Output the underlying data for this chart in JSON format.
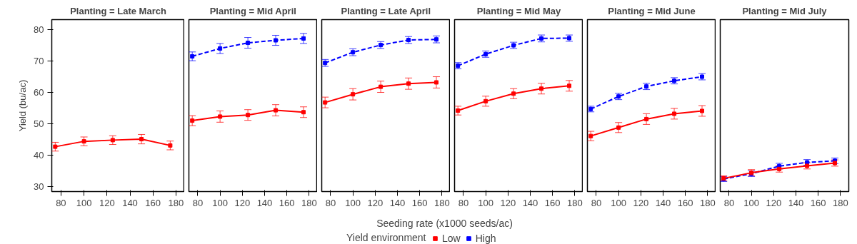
{
  "chart_data": [
    {
      "type": "line",
      "title": "Planting = Late March",
      "ylabel": "Yield (bu/ac)",
      "marker": "square",
      "x": [
        75,
        100,
        125,
        150,
        175
      ],
      "xlim": [
        72,
        187.5
      ],
      "xticks": [
        80,
        100,
        120,
        140,
        160,
        180
      ],
      "ylim": [
        28.4,
        83.2
      ],
      "yticks": [
        30,
        40,
        50,
        60,
        70,
        80
      ],
      "series": [
        {
          "name": "Low",
          "color": "#ff0000",
          "line_style": "solid",
          "values": [
            42.7,
            44.4,
            44.8,
            45.1,
            43.1
          ],
          "errors": [
            1.4,
            1.4,
            1.4,
            1.5,
            1.4
          ]
        }
      ]
    },
    {
      "type": "line",
      "title": "Planting = Mid April",
      "tick_labels": "x",
      "marker": "square",
      "x": [
        75,
        100,
        125,
        150,
        175
      ],
      "xlim": [
        72,
        187.5
      ],
      "xticks": [
        80,
        100,
        120,
        140,
        160,
        180
      ],
      "ylim": [
        28.4,
        83.2
      ],
      "yticks": [
        30,
        40,
        50,
        60,
        70,
        80
      ],
      "series": [
        {
          "name": "Low",
          "color": "#ff0000",
          "line_style": "solid",
          "values": [
            51.0,
            52.3,
            52.8,
            54.3,
            53.7
          ],
          "errors": [
            1.6,
            1.8,
            1.7,
            1.8,
            1.7
          ]
        },
        {
          "name": "High",
          "color": "#0000ff",
          "line_style": "dashed",
          "values": [
            71.5,
            74.0,
            75.8,
            76.6,
            77.2
          ],
          "errors": [
            1.4,
            1.6,
            1.7,
            1.6,
            1.6
          ]
        }
      ]
    },
    {
      "type": "line",
      "title": "Planting = Late April",
      "xlabel": "Seeding rate (x1000 seeds/ac)",
      "legend_title": "Yield environment",
      "legend": "bottom",
      "tick_labels": "x",
      "marker": "square",
      "x": [
        75,
        100,
        125,
        150,
        175
      ],
      "xlim": [
        72,
        187.5
      ],
      "xticks": [
        80,
        100,
        120,
        140,
        160,
        180
      ],
      "ylim": [
        28.4,
        83.2
      ],
      "yticks": [
        30,
        40,
        50,
        60,
        70,
        80
      ],
      "series": [
        {
          "name": "Low",
          "color": "#ff0000",
          "line_style": "solid",
          "values": [
            56.8,
            59.4,
            61.8,
            62.8,
            63.2
          ],
          "errors": [
            1.7,
            1.8,
            1.8,
            1.8,
            1.8
          ]
        },
        {
          "name": "High",
          "color": "#0000ff",
          "line_style": "dashed",
          "values": [
            69.4,
            72.8,
            75.1,
            76.7,
            76.9
          ],
          "errors": [
            1.1,
            1.1,
            1.1,
            1.1,
            1.1
          ]
        }
      ]
    },
    {
      "type": "line",
      "title": "Planting = Mid May",
      "tick_labels": "x",
      "marker": "square",
      "x": [
        75,
        100,
        125,
        150,
        175
      ],
      "xlim": [
        72,
        187.5
      ],
      "xticks": [
        80,
        100,
        120,
        140,
        160,
        180
      ],
      "ylim": [
        28.4,
        83.2
      ],
      "yticks": [
        30,
        40,
        50,
        60,
        70,
        80
      ],
      "series": [
        {
          "name": "Low",
          "color": "#ff0000",
          "line_style": "solid",
          "values": [
            54.2,
            57.2,
            59.6,
            61.2,
            62.1
          ],
          "errors": [
            1.4,
            1.6,
            1.6,
            1.7,
            1.7
          ]
        },
        {
          "name": "High",
          "color": "#0000ff",
          "line_style": "dashed",
          "values": [
            68.5,
            72.2,
            75.0,
            77.2,
            77.3
          ],
          "errors": [
            1.0,
            1.0,
            1.0,
            1.1,
            1.0
          ]
        }
      ]
    },
    {
      "type": "line",
      "title": "Planting = Mid June",
      "tick_labels": "x",
      "marker": "square",
      "x": [
        75,
        100,
        125,
        150,
        175
      ],
      "xlim": [
        72,
        187.5
      ],
      "xticks": [
        80,
        100,
        120,
        140,
        160,
        180
      ],
      "ylim": [
        28.4,
        83.2
      ],
      "yticks": [
        30,
        40,
        50,
        60,
        70,
        80
      ],
      "series": [
        {
          "name": "Low",
          "color": "#ff0000",
          "line_style": "solid",
          "values": [
            46.1,
            48.8,
            51.5,
            53.2,
            54.1
          ],
          "errors": [
            1.5,
            1.6,
            1.7,
            1.7,
            1.7
          ]
        },
        {
          "name": "High",
          "color": "#0000ff",
          "line_style": "dashed",
          "values": [
            54.7,
            58.7,
            61.9,
            63.7,
            65.0
          ],
          "errors": [
            0.9,
            1.0,
            1.0,
            1.0,
            1.0
          ]
        }
      ]
    },
    {
      "type": "line",
      "title": "Planting = Mid July",
      "tick_labels": "x",
      "marker": "square",
      "x": [
        75,
        100,
        125,
        150,
        175
      ],
      "xlim": [
        72,
        187.5
      ],
      "xticks": [
        80,
        100,
        120,
        140,
        160,
        180
      ],
      "ylim": [
        28.4,
        83.2
      ],
      "yticks": [
        30,
        40,
        50,
        60,
        70,
        80
      ],
      "series": [
        {
          "name": "Low",
          "color": "#ff0000",
          "line_style": "solid",
          "values": [
            32.6,
            34.4,
            35.6,
            36.6,
            37.5
          ],
          "errors": [
            0.8,
            1.0,
            1.0,
            1.0,
            1.0
          ]
        },
        {
          "name": "High",
          "color": "#0000ff",
          "line_style": "dashed",
          "values": [
            32.4,
            34.1,
            36.5,
            37.7,
            38.2
          ],
          "errors": [
            0.8,
            0.9,
            0.9,
            0.9,
            0.9
          ]
        }
      ]
    }
  ]
}
